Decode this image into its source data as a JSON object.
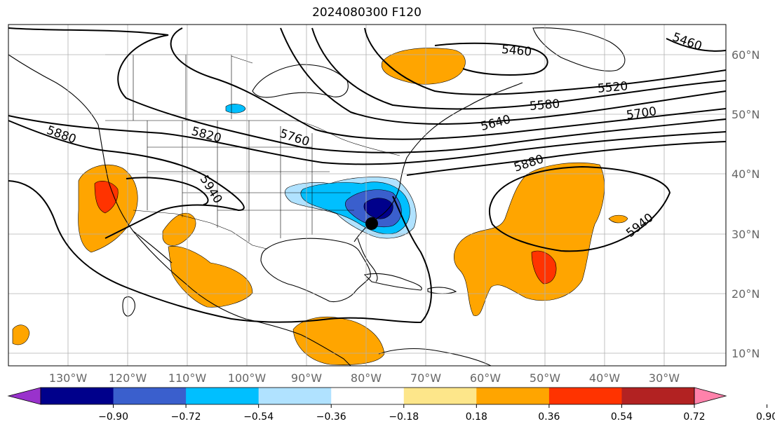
{
  "title": "2024080300 F120",
  "lon_labels": [
    "130°W",
    "120°W",
    "110°W",
    "100°W",
    "90°W",
    "80°W",
    "70°W",
    "60°W",
    "50°W",
    "40°W",
    "30°W"
  ],
  "lat_labels": [
    "60°N",
    "50°N",
    "40°N",
    "30°N",
    "20°N",
    "10°N"
  ],
  "contour_labels": {
    "c5460a": "5460",
    "c5460b": "5460",
    "c5520": "5520",
    "c5580": "5580",
    "c5640": "5640",
    "c5700": "5700",
    "c5760": "5760",
    "c5820": "5820",
    "c5880a": "5880",
    "c5880b": "5880",
    "c5940a": "5940",
    "c5940b": "5940"
  },
  "colorbar": {
    "ticks": [
      "−0.90",
      "−0.72",
      "−0.54",
      "−0.36",
      "−0.18",
      "0.18",
      "0.36",
      "0.54",
      "0.72",
      "0.90"
    ],
    "colors": [
      "#9932cc",
      "#00008b",
      "#3a5fcd",
      "#00bfff",
      "#b0e2ff",
      "#ffffff",
      "#fde68a",
      "#ffa500",
      "#ff3300",
      "#b22222",
      "#ff82ab"
    ]
  },
  "marker": "storm-center"
}
